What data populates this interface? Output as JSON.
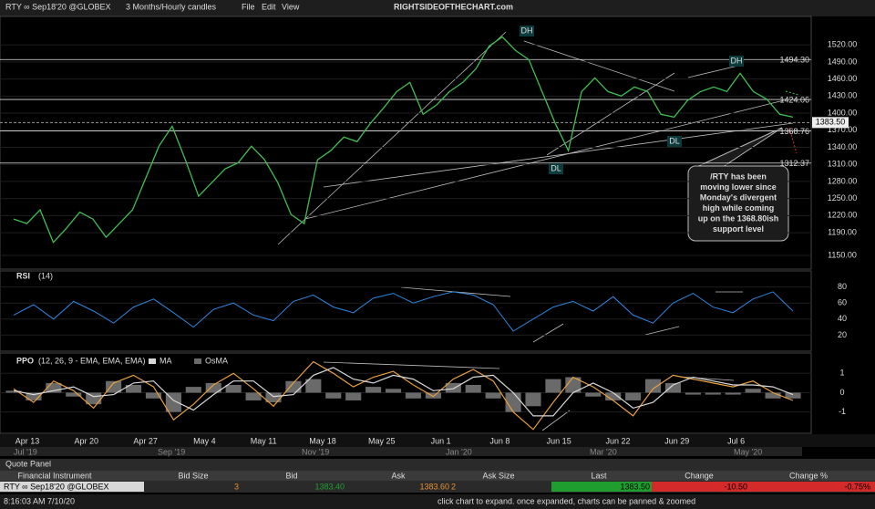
{
  "toolbar": {
    "symbol": "RTY ∞ Sep18'20 @GLOBEX",
    "interval": "3 Months/Hourly candles",
    "menus": [
      "File",
      "Edit",
      "View"
    ],
    "watermark": "RIGHTSIDEOFTHECHART.com"
  },
  "chart_data": [
    {
      "type": "line",
      "name": "price",
      "color": "#3fbf4f",
      "values": [
        1214,
        1206,
        1230,
        1173,
        1198,
        1226,
        1214,
        1182,
        1206,
        1230,
        1286,
        1342,
        1377,
        1318,
        1254,
        1278,
        1302,
        1313,
        1342,
        1318,
        1278,
        1222,
        1206,
        1318,
        1334,
        1358,
        1350,
        1382,
        1409,
        1438,
        1454,
        1398,
        1414,
        1438,
        1454,
        1478,
        1518,
        1534,
        1510,
        1494,
        1438,
        1382,
        1334,
        1438,
        1462,
        1438,
        1430,
        1446,
        1438,
        1398,
        1393,
        1422,
        1438,
        1446,
        1438,
        1470,
        1438,
        1425,
        1398,
        1393
      ],
      "ylim": [
        1126,
        1570
      ],
      "yticks": [
        {
          "value": 1520,
          "label": "1520.00"
        },
        {
          "value": 1490,
          "label": "1490.00"
        },
        {
          "value": 1460,
          "label": "1460.00"
        },
        {
          "value": 1430,
          "label": "1430.00"
        },
        {
          "value": 1400,
          "label": "1400.00"
        },
        {
          "value": 1370,
          "label": "1370.00"
        },
        {
          "value": 1340,
          "label": "1340.00"
        },
        {
          "value": 1310,
          "label": "1310.00"
        },
        {
          "value": 1280,
          "label": "1280.00"
        },
        {
          "value": 1250,
          "label": "1250.00"
        },
        {
          "value": 1220,
          "label": "1220.00"
        },
        {
          "value": 1190,
          "label": "1190.00"
        },
        {
          "value": 1150,
          "label": "1150.00"
        }
      ],
      "levels": [
        {
          "value": 1494.3,
          "label": "1494.30"
        },
        1424.06,
        1368.76,
        1312.37
      ],
      "last": {
        "value": 1383.5,
        "label": "1383.50"
      },
      "annotations": [
        "DH",
        "DH",
        "DL",
        "DL"
      ],
      "callout": [
        "/RTY has been",
        "moving lower since",
        "Monday's divergent",
        "high while coming",
        "up on the 1368.80ish",
        "support level"
      ]
    },
    {
      "type": "line",
      "name": "RSI",
      "period": "(14)",
      "color": "#2f86e0",
      "values": [
        45,
        58,
        40,
        62,
        50,
        35,
        55,
        65,
        48,
        30,
        52,
        60,
        45,
        38,
        62,
        70,
        55,
        48,
        66,
        72,
        60,
        68,
        74,
        70,
        58,
        25,
        40,
        55,
        62,
        50,
        68,
        45,
        35,
        60,
        72,
        55,
        48,
        65,
        74,
        50
      ],
      "ylim": [
        0,
        100
      ],
      "yticks": [
        80,
        60,
        40,
        20
      ]
    },
    {
      "type": "line",
      "name": "PPO",
      "params": "(12, 26, 9 - EMA, EMA, EMA)",
      "series": [
        {
          "name": "PPO",
          "color": "#e8a040",
          "values": [
            0.2,
            -0.5,
            0.6,
            0.1,
            -0.8,
            0.5,
            0.9,
            0.3,
            -1.4,
            -0.6,
            0.4,
            1.0,
            0.2,
            -0.7,
            0.5,
            1.6,
            1.0,
            0.3,
            0.8,
            1.1,
            0.4,
            -0.2,
            0.7,
            1.2,
            0.6,
            -1.0,
            -1.9,
            -0.5,
            0.8,
            0.3,
            -0.4,
            -1.2,
            0.2,
            0.9,
            0.7,
            0.5,
            0.3,
            0.6,
            0.0,
            -0.4
          ]
        },
        {
          "name": "MA",
          "color": "#d8d8d8",
          "values": [
            0.1,
            -0.1,
            0.1,
            0.3,
            -0.2,
            -0.1,
            0.5,
            0.6,
            -0.4,
            -0.9,
            -0.1,
            0.6,
            0.6,
            -0.2,
            -0.1,
            0.9,
            1.3,
            0.7,
            0.5,
            0.9,
            0.7,
            0.1,
            0.2,
            0.8,
            0.9,
            0.0,
            -1.2,
            -1.2,
            0.0,
            0.5,
            0.0,
            -0.8,
            -0.5,
            0.4,
            0.8,
            0.6,
            0.4,
            0.4,
            0.3,
            -0.1
          ]
        },
        {
          "name": "OsMA",
          "color": "#6a6a6a",
          "values": [
            0.1,
            -0.4,
            0.5,
            -0.2,
            -0.6,
            0.6,
            0.4,
            -0.3,
            -1.0,
            0.3,
            0.5,
            0.4,
            -0.4,
            -0.5,
            0.6,
            0.7,
            -0.3,
            -0.4,
            0.3,
            0.2,
            -0.3,
            -0.3,
            0.5,
            0.4,
            -0.3,
            -1.0,
            -0.7,
            0.7,
            0.8,
            -0.2,
            -0.4,
            -0.4,
            0.7,
            0.5,
            -0.1,
            -0.1,
            -0.1,
            0.2,
            -0.3,
            -0.3
          ]
        }
      ],
      "ylim": [
        -2.1,
        2.05
      ],
      "yticks": [
        1,
        0,
        -1
      ]
    }
  ],
  "time_labels": [
    "Apr 13",
    "Apr 20",
    "Apr 27",
    "May 4",
    "May 11",
    "May 18",
    "May 25",
    "Jun 1",
    "Jun 8",
    "Jun 15",
    "Jun 22",
    "Jun 29",
    "Jul 6"
  ],
  "overview_labels": [
    "Jul '19",
    "Sep '19",
    "Nov '19",
    "Jan '20",
    "Mar '20",
    "May '20"
  ],
  "quote_panel": {
    "title": "Quote Panel",
    "columns": [
      "Financial Instrument",
      "Bid Size",
      "Bid",
      "Ask",
      "Ask Size",
      "Last",
      "Change",
      "Change %"
    ],
    "row": [
      "RTY ∞ Sep18'20 @GLOBEX",
      "3",
      "1383.40",
      "1383.60",
      "2",
      "1383.50",
      "-10.50",
      "-0.75%"
    ]
  },
  "status_bar": {
    "time": "8:16:03 AM 7/10/20",
    "message": "click chart to expand. once expanded, charts can be panned & zoomed"
  }
}
